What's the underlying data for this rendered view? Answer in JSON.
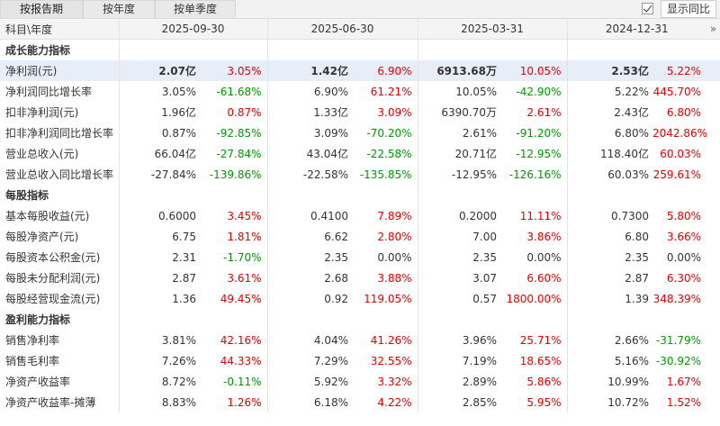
{
  "tabs": [
    {
      "label": "按报告期",
      "active": true
    },
    {
      "label": "按年度",
      "active": false
    },
    {
      "label": "按单季度",
      "active": false
    }
  ],
  "compare_button": "显示同比",
  "header": {
    "corner": "科目\\年度",
    "dates": [
      "2025-09-30",
      "2025-06-30",
      "2025-03-31",
      "2024-12-31"
    ],
    "nav": "»"
  },
  "rows": [
    {
      "type": "section",
      "label": "成长能力指标"
    },
    {
      "type": "data",
      "label": "净利润(元)",
      "highlight": true,
      "values": [
        "2.07亿",
        "1.42亿",
        "6913.68万",
        "2.53亿"
      ],
      "changes": [
        "3.05%",
        "6.90%",
        "10.05%",
        "5.22%"
      ]
    },
    {
      "type": "data",
      "label": "净利润同比增长率",
      "values": [
        "3.05%",
        "6.90%",
        "10.05%",
        "5.22%"
      ],
      "changes": [
        "-61.68%",
        "61.21%",
        "-42.90%",
        "445.70%"
      ]
    },
    {
      "type": "data",
      "label": "扣非净利润(元)",
      "values": [
        "1.96亿",
        "1.33亿",
        "6390.70万",
        "2.43亿"
      ],
      "changes": [
        "0.87%",
        "3.09%",
        "2.61%",
        "6.80%"
      ]
    },
    {
      "type": "data",
      "label": "扣非净利润同比增长率",
      "values": [
        "0.87%",
        "3.09%",
        "2.61%",
        "6.80%"
      ],
      "changes": [
        "-92.85%",
        "-70.20%",
        "-91.20%",
        "2042.86%"
      ]
    },
    {
      "type": "data",
      "label": "营业总收入(元)",
      "values": [
        "66.04亿",
        "43.04亿",
        "20.71亿",
        "118.40亿"
      ],
      "changes": [
        "-27.84%",
        "-22.58%",
        "-12.95%",
        "60.03%"
      ]
    },
    {
      "type": "data",
      "label": "营业总收入同比增长率",
      "values": [
        "-27.84%",
        "-22.58%",
        "-12.95%",
        "60.03%"
      ],
      "changes": [
        "-139.86%",
        "-135.85%",
        "-126.16%",
        "259.61%"
      ]
    },
    {
      "type": "section",
      "label": "每股指标"
    },
    {
      "type": "data",
      "label": "基本每股收益(元)",
      "values": [
        "0.6000",
        "0.4100",
        "0.2000",
        "0.7300"
      ],
      "changes": [
        "3.45%",
        "7.89%",
        "11.11%",
        "5.80%"
      ]
    },
    {
      "type": "data",
      "label": "每股净资产(元)",
      "values": [
        "6.75",
        "6.62",
        "7.00",
        "6.80"
      ],
      "changes": [
        "1.81%",
        "2.80%",
        "3.86%",
        "3.66%"
      ]
    },
    {
      "type": "data",
      "label": "每股资本公积金(元)",
      "values": [
        "2.31",
        "2.35",
        "2.35",
        "2.35"
      ],
      "changes": [
        "-1.70%",
        "0.00%",
        "0.00%",
        "0.00%"
      ]
    },
    {
      "type": "data",
      "label": "每股未分配利润(元)",
      "values": [
        "2.87",
        "2.68",
        "3.07",
        "2.87"
      ],
      "changes": [
        "3.61%",
        "3.88%",
        "6.60%",
        "6.30%"
      ]
    },
    {
      "type": "data",
      "label": "每股经营现金流(元)",
      "values": [
        "1.36",
        "0.92",
        "0.57",
        "1.39"
      ],
      "changes": [
        "49.45%",
        "119.05%",
        "1800.00%",
        "348.39%"
      ]
    },
    {
      "type": "section",
      "label": "盈利能力指标"
    },
    {
      "type": "data",
      "label": "销售净利率",
      "values": [
        "3.81%",
        "4.04%",
        "3.96%",
        "2.66%"
      ],
      "changes": [
        "42.16%",
        "41.26%",
        "25.71%",
        "-31.79%"
      ]
    },
    {
      "type": "data",
      "label": "销售毛利率",
      "values": [
        "7.26%",
        "7.29%",
        "7.19%",
        "5.16%"
      ],
      "changes": [
        "44.33%",
        "32.55%",
        "18.65%",
        "-30.92%"
      ]
    },
    {
      "type": "data",
      "label": "净资产收益率",
      "values": [
        "8.72%",
        "5.92%",
        "2.89%",
        "10.99%"
      ],
      "changes": [
        "-0.11%",
        "3.32%",
        "5.86%",
        "1.67%"
      ]
    },
    {
      "type": "data",
      "label": "净资产收益率-摊薄",
      "values": [
        "8.83%",
        "6.18%",
        "2.85%",
        "10.72%"
      ],
      "changes": [
        "1.26%",
        "4.22%",
        "5.95%",
        "1.52%"
      ]
    }
  ],
  "colors": {
    "up": "#e60000",
    "down": "#009900",
    "highlight_row": "#e8eef7"
  }
}
